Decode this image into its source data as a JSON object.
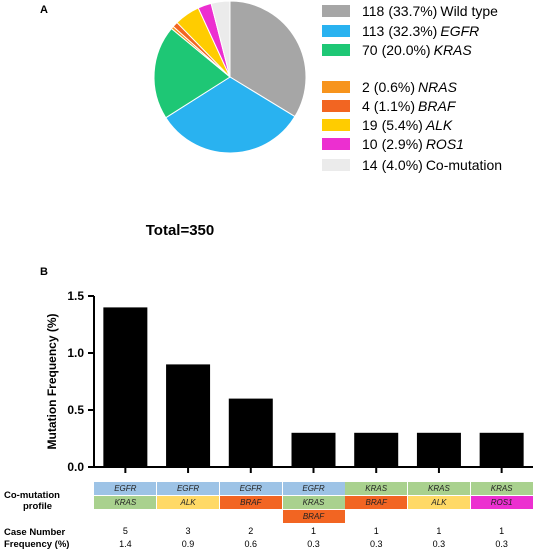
{
  "chart_data": [
    {
      "type": "pie",
      "panel": "A",
      "footer": "Total=350",
      "slices": [
        {
          "count": "118",
          "pct": "(33.7%)",
          "name": "Wild type",
          "italic": false,
          "value": 118,
          "color": "#a6a6a6"
        },
        {
          "count": "113",
          "pct": "(32.3%)",
          "name": "EGFR",
          "italic": true,
          "value": 113,
          "color": "#29b2f0"
        },
        {
          "count": "70",
          "pct": "(20.0%)",
          "name": "KRAS",
          "italic": true,
          "value": 70,
          "color": "#1ec775"
        },
        {
          "count": "2",
          "pct": "(0.6%)",
          "name": "NRAS",
          "italic": true,
          "value": 2,
          "color": "#f7941d"
        },
        {
          "count": "4",
          "pct": "(1.1%)",
          "name": "BRAF",
          "italic": true,
          "value": 4,
          "color": "#f26522"
        },
        {
          "count": "19",
          "pct": "(5.4%)",
          "name": "ALK",
          "italic": true,
          "value": 19,
          "color": "#ffcc00"
        },
        {
          "count": "10",
          "pct": "(2.9%)",
          "name": "ROS1",
          "italic": true,
          "value": 10,
          "color": "#ec2fd0"
        },
        {
          "count": "14",
          "pct": "(4.0%)",
          "name": "Co-mutation",
          "italic": false,
          "value": 14,
          "color": "#ebebeb"
        }
      ]
    },
    {
      "type": "bar",
      "panel": "B",
      "ylabel": "Mutation Frequency (%)",
      "ylim": [
        0,
        1.5
      ],
      "yticks": [
        "0.0",
        "0.5",
        "1.0",
        "1.5"
      ],
      "ytick_values": [
        0,
        0.5,
        1.0,
        1.5
      ],
      "categories": [
        "EGFR/KRAS",
        "EGFR/ALK",
        "EGFR/BRAF",
        "EGFR/KRAS/BRAF",
        "KRAS/BRAF",
        "KRAS/ALK",
        "KRAS/ROS1"
      ],
      "values": [
        1.4,
        0.9,
        0.6,
        0.3,
        0.3,
        0.3,
        0.3
      ],
      "bar_color": "#000000"
    }
  ],
  "table": {
    "comutation_label_line1": "Co-mutation",
    "comutation_label_line2": "profile",
    "case_number_label": "Case Number",
    "frequency_label": "Frequency (%)",
    "profiles": [
      [
        {
          "gene": "EGFR",
          "color": "#9dc3e6"
        },
        {
          "gene": "KRAS",
          "color": "#a9d18e"
        }
      ],
      [
        {
          "gene": "EGFR",
          "color": "#9dc3e6"
        },
        {
          "gene": "ALK",
          "color": "#ffd966"
        }
      ],
      [
        {
          "gene": "EGFR",
          "color": "#9dc3e6"
        },
        {
          "gene": "BRAF",
          "color": "#f26522"
        }
      ],
      [
        {
          "gene": "EGFR",
          "color": "#9dc3e6"
        },
        {
          "gene": "KRAS",
          "color": "#a9d18e"
        },
        {
          "gene": "BRAF",
          "color": "#f26522"
        }
      ],
      [
        {
          "gene": "KRAS",
          "color": "#a9d18e"
        },
        {
          "gene": "BRAF",
          "color": "#f26522"
        }
      ],
      [
        {
          "gene": "KRAS",
          "color": "#a9d18e"
        },
        {
          "gene": "ALK",
          "color": "#ffd966"
        }
      ],
      [
        {
          "gene": "KRAS",
          "color": "#a9d18e"
        },
        {
          "gene": "ROS1",
          "color": "#ec2fd0"
        }
      ]
    ],
    "case_numbers": [
      "5",
      "3",
      "2",
      "1",
      "1",
      "1",
      "1"
    ],
    "frequencies": [
      "1.4",
      "0.9",
      "0.6",
      "0.3",
      "0.3",
      "0.3",
      "0.3"
    ]
  }
}
